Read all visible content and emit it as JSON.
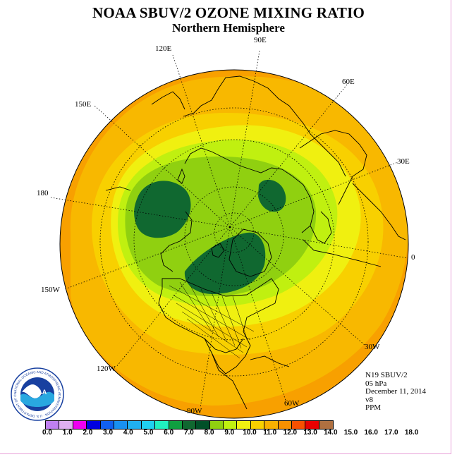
{
  "title": "NOAA SBUV/2 OZONE MIXING RATIO",
  "subtitle": "Northern Hemisphere",
  "longitude_labels": [
    {
      "id": "90E",
      "text": "90E"
    },
    {
      "id": "60E",
      "text": "60E"
    },
    {
      "id": "30E",
      "text": "30E"
    },
    {
      "id": "0",
      "text": "0"
    },
    {
      "id": "30W",
      "text": "30W"
    },
    {
      "id": "60W",
      "text": "60W"
    },
    {
      "id": "90W",
      "text": "90W"
    },
    {
      "id": "120W",
      "text": "120W"
    },
    {
      "id": "150W",
      "text": "150W"
    },
    {
      "id": "180",
      "text": "180"
    },
    {
      "id": "150E",
      "text": "150E"
    },
    {
      "id": "120E",
      "text": "120E"
    }
  ],
  "info": {
    "satellite": "N19 SBUV/2",
    "level": "05 hPa",
    "date": "December 11, 2014",
    "version": "v8",
    "units": "PPM"
  },
  "logo": {
    "text": "NOAA",
    "ring_text": "NATIONAL OCEANIC AND ATMOSPHERIC ADMINISTRATION · U.S. DEPARTMENT OF COMMERCE"
  },
  "colorbar": {
    "colors": [
      "#c080f0",
      "#e0b0f0",
      "#f000f0",
      "#0000e0",
      "#1060f0",
      "#1890f0",
      "#20b0f0",
      "#20d0f0",
      "#20f0c0",
      "#10a040",
      "#106830",
      "#005028",
      "#90d010",
      "#c0f010",
      "#f0f010",
      "#f8d000",
      "#f8b000",
      "#f89000",
      "#f85000",
      "#e80000",
      "#b07040"
    ],
    "labels": [
      "0.0",
      "1.0",
      "2.0",
      "3.0",
      "4.0",
      "5.0",
      "6.0",
      "7.0",
      "8.0",
      "9.0",
      "10.0",
      "11.0",
      "12.0",
      "13.0",
      "14.0",
      "15.0",
      "16.0",
      "17.0",
      "18.0"
    ]
  },
  "field_colors": {
    "outer": "#f8a000",
    "band_orange": "#f8b800",
    "band_gold": "#f8d000",
    "band_yellow": "#f0f010",
    "band_lime": "#c0f010",
    "band_green": "#90d010",
    "band_darkgreen": "#106830"
  }
}
